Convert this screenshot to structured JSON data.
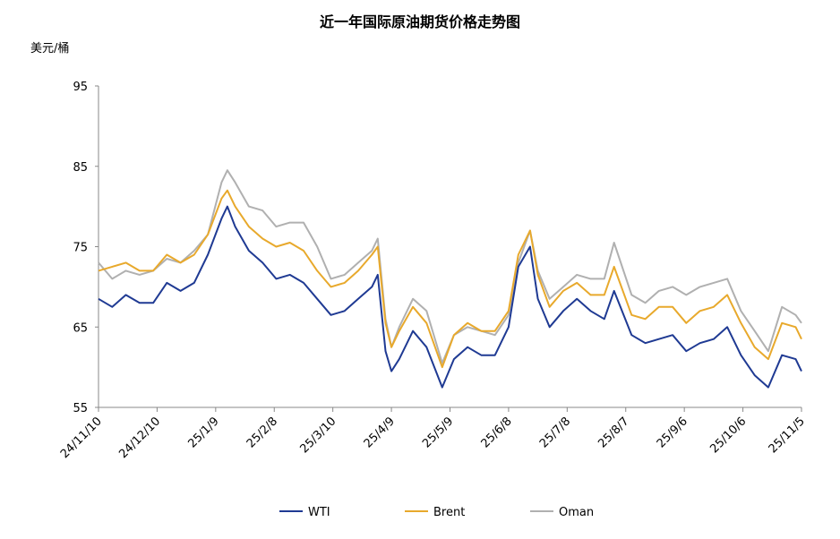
{
  "chart_data": {
    "type": "line",
    "title": "近一年国际原油期货价格走势图",
    "y_label": "美元/桶",
    "x": [
      "24/11/10",
      "24/11/17",
      "24/11/24",
      "24/12/1",
      "24/12/8",
      "24/12/15",
      "24/12/22",
      "24/12/29",
      "25/1/5",
      "25/1/12",
      "25/1/15",
      "25/1/19",
      "25/1/26",
      "25/2/2",
      "25/2/9",
      "25/2/16",
      "25/2/23",
      "25/3/2",
      "25/3/9",
      "25/3/16",
      "25/3/23",
      "25/3/30",
      "25/4/2",
      "25/4/6",
      "25/4/9",
      "25/4/13",
      "25/4/20",
      "25/4/27",
      "25/5/5",
      "25/5/11",
      "25/5/18",
      "25/5/25",
      "25/6/1",
      "25/6/8",
      "25/6/13",
      "25/6/19",
      "25/6/23",
      "25/6/29",
      "25/7/6",
      "25/7/13",
      "25/7/20",
      "25/7/27",
      "25/8/1",
      "25/8/10",
      "25/8/17",
      "25/8/24",
      "25/8/31",
      "25/9/7",
      "25/9/14",
      "25/9/21",
      "25/9/28",
      "25/10/5",
      "25/10/12",
      "25/10/19",
      "25/10/26",
      "25/11/2",
      "25/11/5"
    ],
    "series": [
      {
        "name": "WTI",
        "color": "#1f3a93",
        "values": [
          68.5,
          67.5,
          69,
          68,
          68,
          70.5,
          69.5,
          70.5,
          74,
          78.5,
          80,
          77.5,
          74.5,
          73,
          71,
          71.5,
          70.5,
          68.5,
          66.5,
          67,
          68.5,
          70,
          71.5,
          62,
          59.5,
          61,
          64.5,
          62.5,
          57.5,
          61,
          62.5,
          61.5,
          61.5,
          65,
          72.5,
          75,
          68.5,
          65,
          67,
          68.5,
          67,
          66,
          69.5,
          64,
          63,
          63.5,
          64,
          62,
          63,
          63.5,
          65,
          61.5,
          59,
          57.5,
          61.5,
          61,
          59.5
        ]
      },
      {
        "name": "Brent",
        "color": "#e8a92c",
        "values": [
          72,
          72.5,
          73,
          72,
          72,
          74,
          73,
          74,
          76.5,
          81,
          82,
          80,
          77.5,
          76,
          75,
          75.5,
          74.5,
          72,
          70,
          70.5,
          72,
          74,
          75,
          65.5,
          62.5,
          64.5,
          67.5,
          65.5,
          60,
          64,
          65.5,
          64.5,
          64.5,
          67,
          74,
          77,
          71.5,
          67.5,
          69.5,
          70.5,
          69,
          69,
          72.5,
          66.5,
          66,
          67.5,
          67.5,
          65.5,
          67,
          67.5,
          69,
          65.5,
          62.5,
          61,
          65.5,
          65,
          63.5
        ]
      },
      {
        "name": "Oman",
        "color": "#b0b0b0",
        "values": [
          73,
          71,
          72,
          71.5,
          72,
          73.5,
          73,
          74.5,
          76.5,
          83,
          84.5,
          83,
          80,
          79.5,
          77.5,
          78,
          78,
          75,
          71,
          71.5,
          73,
          74.5,
          76,
          66,
          62.5,
          65,
          68.5,
          67,
          60.5,
          64,
          65,
          64.5,
          64,
          66.5,
          73,
          77,
          72,
          68.5,
          70,
          71.5,
          71,
          71,
          75.5,
          69,
          68,
          69.5,
          70,
          69,
          70,
          70.5,
          71,
          67,
          64.5,
          62,
          67.5,
          66.5,
          65.5
        ]
      }
    ],
    "xlim": [
      "24/11/10",
      "25/11/5"
    ],
    "xticks": [
      "24/11/10",
      "24/12/10",
      "25/1/9",
      "25/2/8",
      "25/3/10",
      "25/4/9",
      "25/5/9",
      "25/6/8",
      "25/7/8",
      "25/8/7",
      "25/9/6",
      "25/10/6",
      "25/11/5"
    ],
    "ylim": [
      55,
      95
    ],
    "yticks": [
      55,
      65,
      75,
      85,
      95
    ],
    "grid": false,
    "legend": "bottom"
  }
}
